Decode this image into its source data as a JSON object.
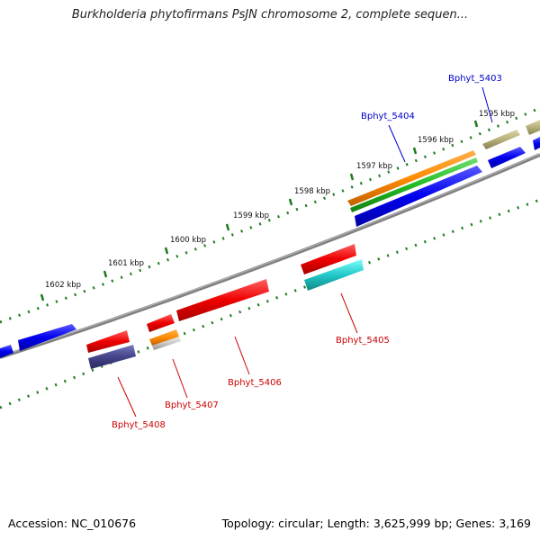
{
  "title": "Burkholderia phytofirmans PsJN chromosome 2, complete sequen...",
  "footer": {
    "accession": "Accession: NC_010676",
    "summary": "Topology: circular; Length: 3,625,999 bp; Genes: 3,169"
  },
  "colors": {
    "backbone": "#808080",
    "tick": "#1e7a1e",
    "forward_label": "#0000cc",
    "reverse_label": "#cc0000",
    "cds_red": "#ee1111",
    "cds_blue": "#1111ee",
    "orange": "#ff8c00",
    "green": "#33bb33",
    "khaki": "#b8b07a",
    "cyan": "#22c8c8",
    "slate": "#44448a",
    "silver": "#c8c8c8"
  },
  "ticks": [
    "1595 kbp",
    "1596 kbp",
    "1597 kbp",
    "1598 kbp",
    "1599 kbp",
    "1600 kbp",
    "1601 kbp",
    "1602 kbp"
  ],
  "genes": [
    {
      "id": "Bphyt_5403",
      "strand": "forward",
      "color": "khaki"
    },
    {
      "id": "Bphyt_5404",
      "strand": "forward",
      "color": "orange"
    },
    {
      "id": "Bphyt_5405",
      "strand": "reverse",
      "color": "cds_red"
    },
    {
      "id": "Bphyt_5406",
      "strand": "reverse",
      "color": "cds_red"
    },
    {
      "id": "Bphyt_5407",
      "strand": "reverse",
      "color": "cds_red"
    },
    {
      "id": "Bphyt_5408",
      "strand": "reverse",
      "color": "cds_red"
    }
  ]
}
